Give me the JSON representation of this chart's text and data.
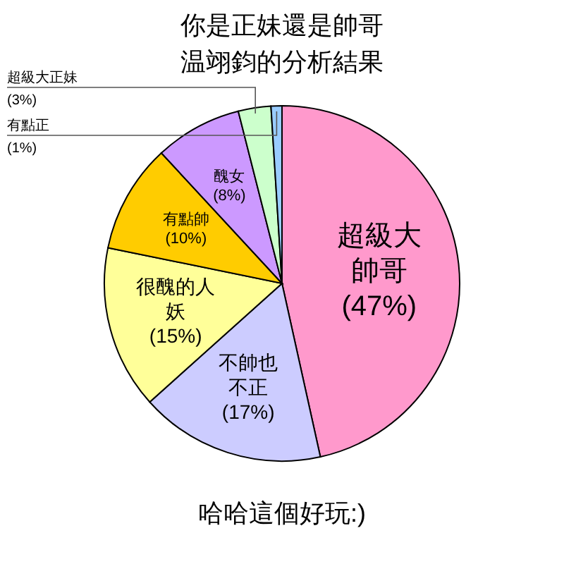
{
  "chart_data": {
    "type": "pie",
    "title": "你是正妹還是帥哥",
    "subtitle": "温翊鈞的分析結果",
    "categories": [
      "超級大帥哥",
      "不帥也不正",
      "很醜的人妖",
      "有點帥",
      "醜女",
      "超級大正妹",
      "有點正"
    ],
    "values": [
      47,
      17,
      15,
      10,
      8,
      3,
      1
    ],
    "value_labels": [
      "(47%)",
      "(17%)",
      "(15%)",
      "(10%)",
      "(8%)",
      "(3%)",
      "(1%)"
    ],
    "colors": [
      "#ff99cc",
      "#ccccff",
      "#ffff99",
      "#ffcc00",
      "#cc99ff",
      "#ccffcc",
      "#99ccff"
    ],
    "annotations": [
      "哈哈這個好玩:)"
    ]
  }
}
